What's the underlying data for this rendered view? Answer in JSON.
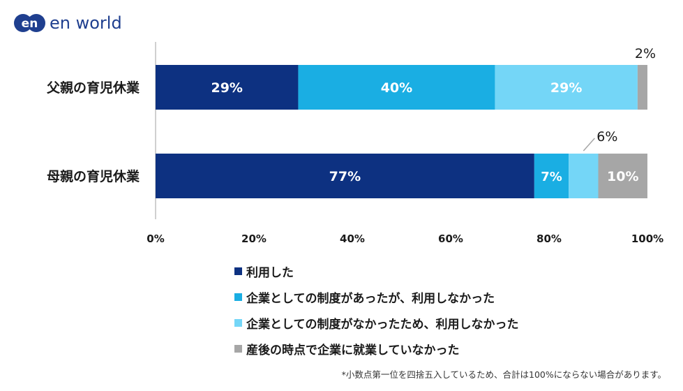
{
  "logo": {
    "mark_text": "en",
    "text": "en world",
    "color": "#1f3f8f"
  },
  "chart_data": {
    "type": "bar",
    "orientation": "horizontal",
    "stacked": true,
    "categories": [
      "父親の育児休業",
      "母親の育児休業"
    ],
    "series": [
      {
        "name": "利用した",
        "values": [
          29,
          77
        ],
        "labels": [
          "29%",
          "77%"
        ],
        "color": "#0d3181"
      },
      {
        "name": "企業としての制度があったが、利用しなかった",
        "values": [
          40,
          7
        ],
        "labels": [
          "40%",
          "7%"
        ],
        "color": "#1aaee3"
      },
      {
        "name": "企業としての制度がなかったため、利用しなかった",
        "values": [
          29,
          6
        ],
        "labels": [
          "29%",
          "6%"
        ],
        "color": "#74d6f7"
      },
      {
        "name": "産後の時点で企業に就業していなかった",
        "values": [
          2,
          10
        ],
        "labels": [
          "2%",
          "10%"
        ],
        "color": "#a6a6a6"
      }
    ],
    "xlim": [
      0,
      100
    ],
    "xticks": [
      "0%",
      "20%",
      "40%",
      "60%",
      "80%",
      "100%"
    ],
    "grid": false,
    "legend_position": "bottom"
  },
  "footnote": "*小数点第一位を四捨五入しているため、合計は100%にならない場合があります。"
}
